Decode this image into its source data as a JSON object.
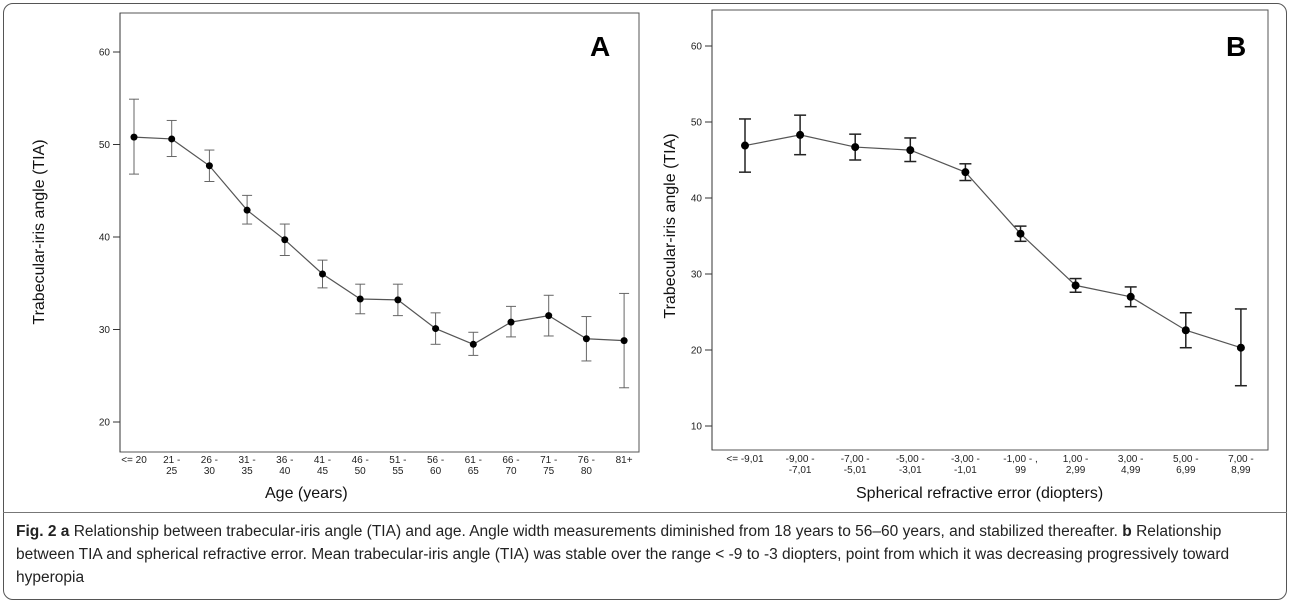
{
  "chart_data": [
    {
      "type": "line",
      "panel_label": "A",
      "xlabel": "Age (years)",
      "ylabel": "Trabecular-iris angle (TIA)",
      "ylim": [
        18,
        62
      ],
      "yticks": [
        20,
        30,
        40,
        50,
        60
      ],
      "categories": [
        "<= 20",
        "21 -|25",
        "26 -|30",
        "31 -|35",
        "36 -|40",
        "41 -|45",
        "46 -|50",
        "51 -|55",
        "56 -|60",
        "61 -|65",
        "66 -|70",
        "71 -|75",
        "76 -|80",
        "81+"
      ],
      "series": [
        {
          "values": [
            50.8,
            50.6,
            47.7,
            42.9,
            39.7,
            36.0,
            33.3,
            33.2,
            30.1,
            28.4,
            30.8,
            31.5,
            29.0,
            28.8
          ],
          "lower": [
            46.8,
            48.7,
            46.0,
            41.4,
            38.0,
            34.5,
            31.7,
            31.5,
            28.4,
            27.2,
            29.2,
            29.3,
            26.6,
            23.7
          ],
          "upper": [
            54.9,
            52.6,
            49.4,
            44.5,
            41.4,
            37.5,
            34.9,
            34.9,
            31.8,
            29.7,
            32.5,
            33.7,
            31.4,
            33.9
          ]
        }
      ],
      "grid": false
    },
    {
      "type": "line",
      "panel_label": "B",
      "xlabel": "Spherical refractive error (diopters)",
      "ylabel": "Trabecular-iris angle (TIA)",
      "ylim": [
        8,
        62
      ],
      "yticks": [
        10,
        20,
        30,
        40,
        50,
        60
      ],
      "categories": [
        "<= -9,01",
        "-9,00 -|-7,01",
        "-7,00 -|-5,01",
        "-5,00 -|-3,01",
        "-3,00 -|-1,01",
        "-1,00 - ,|99",
        "1,00 -|2,99",
        "3,00 -|4,99",
        "5,00 -|6,99",
        "7,00 -|8,99"
      ],
      "series": [
        {
          "values": [
            46.9,
            48.3,
            46.7,
            46.3,
            43.4,
            35.3,
            28.5,
            27.0,
            22.6,
            20.3
          ],
          "lower": [
            43.4,
            45.7,
            45.0,
            44.8,
            42.3,
            34.3,
            27.6,
            25.7,
            20.3,
            15.3
          ],
          "upper": [
            50.4,
            50.9,
            48.4,
            47.9,
            44.5,
            36.3,
            29.4,
            28.3,
            24.9,
            25.4
          ]
        }
      ],
      "grid": false
    }
  ],
  "caption": {
    "fig_label": "Fig. 2",
    "a_label": "a",
    "a_text": "Relationship between trabecular-iris angle (TIA) and age. Angle width measurements diminished from 18 years to 56–60 years, and stabilized thereafter.",
    "b_label": "b",
    "b_text": "Relationship between TIA and spherical refractive error. Mean trabecular-iris angle (TIA) was stable over the range < -9 to -3 diopters, point from which it was decreasing progressively toward hyperopia"
  }
}
